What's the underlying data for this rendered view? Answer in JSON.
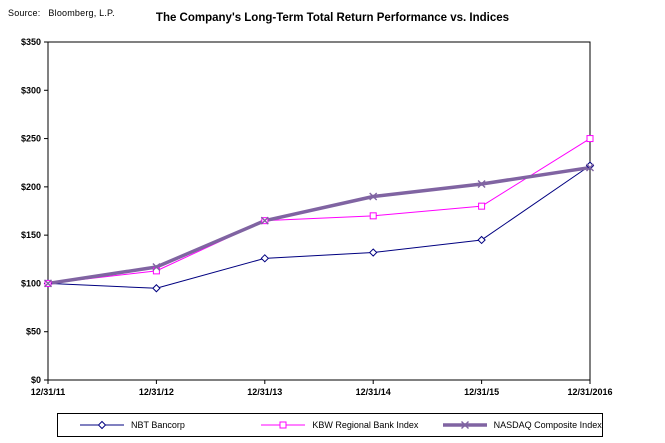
{
  "header": {
    "source_label": "Source:",
    "source_value": "Bloomberg,  L.P."
  },
  "chart_data": {
    "type": "line",
    "title": "The Company's Long-Term Total Return Performance vs. Indices",
    "categories": [
      "12/31/11",
      "12/31/12",
      "12/31/13",
      "12/31/14",
      "12/31/15",
      "12/31/2016"
    ],
    "series": [
      {
        "name": "NBT Bancorp",
        "color": "#000080",
        "marker": "diamond",
        "line_width": 1,
        "values": [
          100,
          95,
          126,
          132,
          145,
          222
        ]
      },
      {
        "name": "KBW Regional Bank Index",
        "color": "#FF00FF",
        "marker": "square",
        "line_width": 1,
        "values": [
          100,
          113,
          165,
          170,
          180,
          250
        ]
      },
      {
        "name": "NASDAQ Composite Index",
        "color": "#8064A2",
        "marker": "x",
        "line_width": 3.5,
        "values": [
          100,
          117,
          165,
          190,
          203,
          220
        ]
      }
    ],
    "ylim": [
      0,
      350
    ],
    "y_ticks": [
      "$0",
      "$50",
      "$100",
      "$150",
      "$200",
      "$250",
      "$300",
      "$350"
    ],
    "y_tick_values": [
      0,
      50,
      100,
      150,
      200,
      250,
      300,
      350
    ],
    "grid": false,
    "legend_position": "bottom"
  }
}
